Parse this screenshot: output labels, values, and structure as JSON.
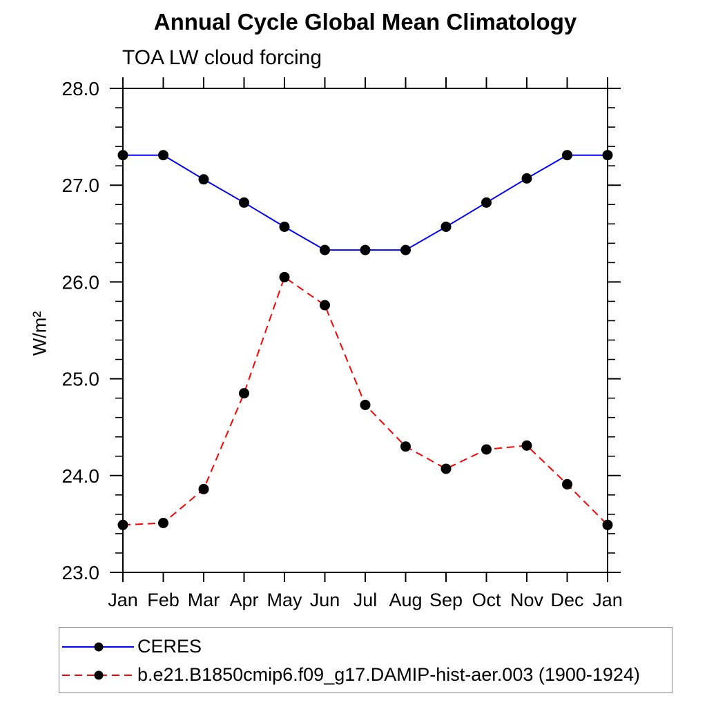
{
  "chart_data": {
    "type": "line",
    "title": "Annual Cycle Global Mean Climatology",
    "subtitle": "TOA LW cloud forcing",
    "xlabel": "",
    "ylabel": "W/m²",
    "categories": [
      "Jan",
      "Feb",
      "Mar",
      "Apr",
      "May",
      "Jun",
      "Jul",
      "Aug",
      "Sep",
      "Oct",
      "Nov",
      "Dec",
      "Jan"
    ],
    "series": [
      {
        "name": "CERES",
        "line_color": "#0000ff",
        "line_style": "solid",
        "marker": "filled-circle",
        "marker_color": "#000000",
        "values": [
          27.31,
          27.31,
          27.06,
          26.82,
          26.57,
          26.33,
          26.33,
          26.33,
          26.57,
          26.82,
          27.07,
          27.31,
          27.31
        ]
      },
      {
        "name": "b.e21.B1850cmip6.f09_g17.DAMIP-hist-aer.003 (1900-1924)",
        "line_color": "#ff0000",
        "line_style": "dashed",
        "marker": "filled-circle",
        "marker_color": "#000000",
        "values": [
          23.49,
          23.51,
          23.86,
          24.85,
          26.05,
          25.76,
          24.73,
          24.3,
          24.07,
          24.27,
          24.31,
          23.91,
          23.49
        ]
      }
    ],
    "ylim": [
      23.0,
      28.0
    ],
    "yticks": [
      23,
      24,
      25,
      26,
      27,
      28
    ],
    "ytick_labels": [
      "23.0",
      "24.0",
      "25.0",
      "26.0",
      "27.0",
      "28.0"
    ],
    "yminor_step": 0.2,
    "grid": false,
    "legend_position": "bottom-left",
    "colors": {
      "axis": "#000000",
      "text": "#000000",
      "legend_border": "#848484",
      "background": "#ffffff"
    }
  }
}
